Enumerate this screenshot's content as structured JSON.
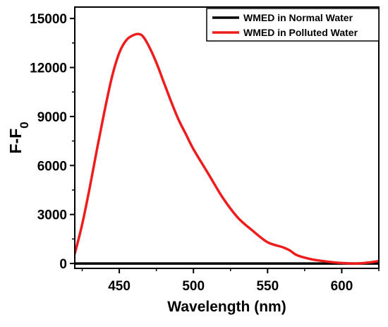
{
  "chart_data": {
    "type": "line",
    "xlabel": "Wavelength (nm)",
    "ylabel_main": "F-F",
    "ylabel_sub": "0",
    "xlim": [
      420,
      625
    ],
    "ylim": [
      -300,
      15700
    ],
    "x_ticks": [
      450,
      500,
      550,
      600
    ],
    "y_ticks": [
      0,
      3000,
      6000,
      9000,
      12000,
      15000
    ],
    "x_tick_labels": [
      "450",
      "500",
      "550",
      "600"
    ],
    "y_tick_labels": [
      "0",
      "3000",
      "6000",
      "9000",
      "12000",
      "15000"
    ],
    "legend_position": "top-right",
    "series": [
      {
        "name": "WMED in Normal Water",
        "color": "#000000",
        "x": [
          420,
          450,
          500,
          550,
          600,
          625
        ],
        "y": [
          0,
          0,
          0,
          0,
          0,
          0
        ]
      },
      {
        "name": "WMED in Polluted Water",
        "color": "#ee1c1c",
        "x": [
          420,
          425,
          430,
          435,
          440,
          445,
          450,
          455,
          460,
          463,
          466,
          470,
          475,
          480,
          485,
          490,
          495,
          500,
          510,
          520,
          530,
          540,
          550,
          560,
          565,
          570,
          580,
          590,
          600,
          610,
          620,
          625
        ],
        "y": [
          600,
          2400,
          4600,
          7000,
          9300,
          11400,
          12900,
          13700,
          14000,
          14050,
          13900,
          13300,
          12300,
          11100,
          9900,
          8800,
          7900,
          7000,
          5500,
          4000,
          2800,
          2000,
          1300,
          1000,
          800,
          500,
          250,
          120,
          30,
          0,
          80,
          150
        ]
      }
    ]
  }
}
